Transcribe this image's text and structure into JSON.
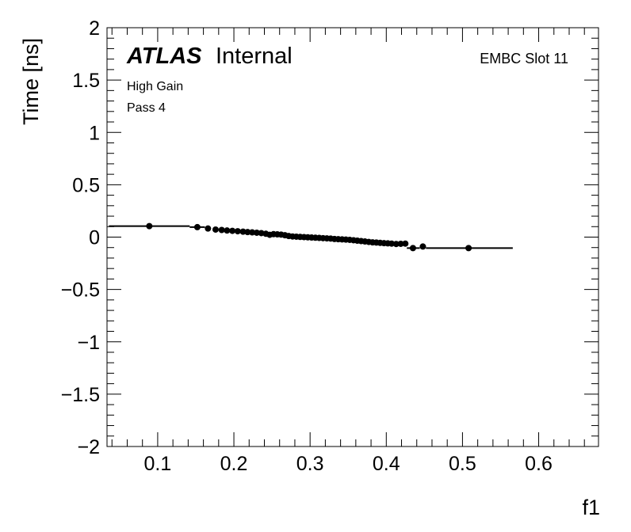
{
  "chart_data": {
    "type": "scatter",
    "xlabel": "f1",
    "ylabel": "Time [ns]",
    "xlim": [
      0.0335,
      0.6785
    ],
    "ylim": [
      -2,
      2
    ],
    "x_ticks": [
      "0.1",
      "0.2",
      "0.3",
      "0.4",
      "0.5",
      "0.6"
    ],
    "y_ticks": [
      "2",
      "1.5",
      "1",
      "0.5",
      "0",
      "−0.5",
      "−1",
      "−1.5",
      "−2"
    ],
    "annotations": {
      "atlas": "ATLAS",
      "internal": "Internal",
      "gain": "High Gain",
      "pass": "Pass 4",
      "slot": "EMBC Slot 11"
    },
    "points": [
      {
        "x": 0.089,
        "y": 0.105
      },
      {
        "x": 0.152,
        "y": 0.095
      },
      {
        "x": 0.166,
        "y": 0.082
      },
      {
        "x": 0.176,
        "y": 0.072
      },
      {
        "x": 0.184,
        "y": 0.068
      },
      {
        "x": 0.191,
        "y": 0.063
      },
      {
        "x": 0.198,
        "y": 0.06
      },
      {
        "x": 0.205,
        "y": 0.056
      },
      {
        "x": 0.212,
        "y": 0.052
      },
      {
        "x": 0.218,
        "y": 0.048
      },
      {
        "x": 0.224,
        "y": 0.045
      },
      {
        "x": 0.23,
        "y": 0.042
      },
      {
        "x": 0.236,
        "y": 0.038
      },
      {
        "x": 0.242,
        "y": 0.032
      },
      {
        "x": 0.247,
        "y": 0.022
      },
      {
        "x": 0.252,
        "y": 0.028
      },
      {
        "x": 0.257,
        "y": 0.026
      },
      {
        "x": 0.262,
        "y": 0.024
      },
      {
        "x": 0.267,
        "y": 0.018
      },
      {
        "x": 0.272,
        "y": 0.01
      },
      {
        "x": 0.277,
        "y": 0.006
      },
      {
        "x": 0.282,
        "y": 0.004
      },
      {
        "x": 0.287,
        "y": 0.002
      },
      {
        "x": 0.292,
        "y": 0.0
      },
      {
        "x": 0.297,
        "y": -0.002
      },
      {
        "x": 0.302,
        "y": -0.004
      },
      {
        "x": 0.307,
        "y": -0.006
      },
      {
        "x": 0.312,
        "y": -0.008
      },
      {
        "x": 0.317,
        "y": -0.01
      },
      {
        "x": 0.322,
        "y": -0.012
      },
      {
        "x": 0.327,
        "y": -0.014
      },
      {
        "x": 0.332,
        "y": -0.018
      },
      {
        "x": 0.337,
        "y": -0.02
      },
      {
        "x": 0.342,
        "y": -0.022
      },
      {
        "x": 0.347,
        "y": -0.024
      },
      {
        "x": 0.352,
        "y": -0.026
      },
      {
        "x": 0.357,
        "y": -0.03
      },
      {
        "x": 0.362,
        "y": -0.034
      },
      {
        "x": 0.367,
        "y": -0.038
      },
      {
        "x": 0.372,
        "y": -0.042
      },
      {
        "x": 0.377,
        "y": -0.046
      },
      {
        "x": 0.382,
        "y": -0.05
      },
      {
        "x": 0.387,
        "y": -0.052
      },
      {
        "x": 0.392,
        "y": -0.055
      },
      {
        "x": 0.397,
        "y": -0.058
      },
      {
        "x": 0.402,
        "y": -0.06
      },
      {
        "x": 0.407,
        "y": -0.062
      },
      {
        "x": 0.413,
        "y": -0.066
      },
      {
        "x": 0.419,
        "y": -0.064
      },
      {
        "x": 0.425,
        "y": -0.062
      },
      {
        "x": 0.435,
        "y": -0.105
      },
      {
        "x": 0.448,
        "y": -0.09
      },
      {
        "x": 0.508,
        "y": -0.105
      }
    ],
    "error_bars": [
      {
        "x1": 0.036,
        "x2": 0.142,
        "y": 0.105
      },
      {
        "x1": 0.142,
        "x2": 0.162,
        "y": 0.095
      },
      {
        "x1": 0.427,
        "x2": 0.444,
        "y": -0.105
      },
      {
        "x1": 0.444,
        "x2": 0.452,
        "y": -0.09
      },
      {
        "x1": 0.452,
        "x2": 0.566,
        "y": -0.105
      }
    ]
  }
}
